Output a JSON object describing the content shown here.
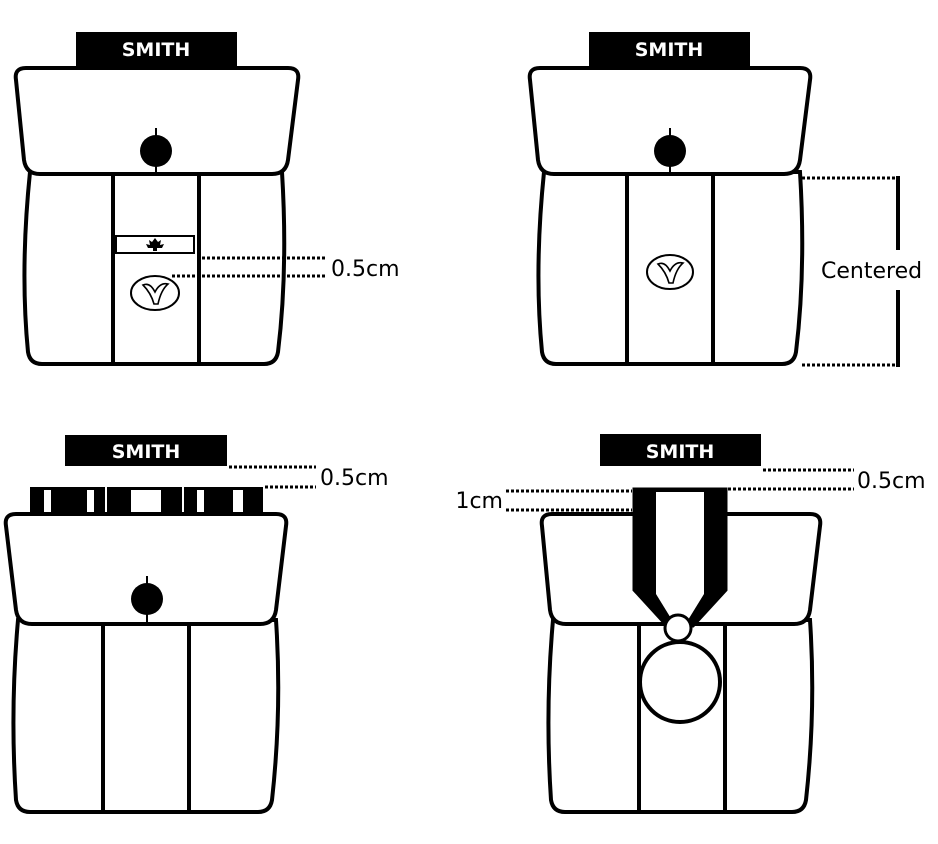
{
  "diagrams": {
    "top_left": {
      "name_tag": "SMITH",
      "measure_label": "0.5cm"
    },
    "top_right": {
      "name_tag": "SMITH",
      "measure_label": "Centered"
    },
    "bottom_left": {
      "name_tag": "SMITH",
      "measure_label": "0.5cm"
    },
    "bottom_right": {
      "name_tag": "SMITH",
      "measure_label_right": "0.5cm",
      "measure_label_left": "1cm"
    }
  },
  "colors": {
    "outline": "#000000",
    "fill": "#ffffff"
  }
}
